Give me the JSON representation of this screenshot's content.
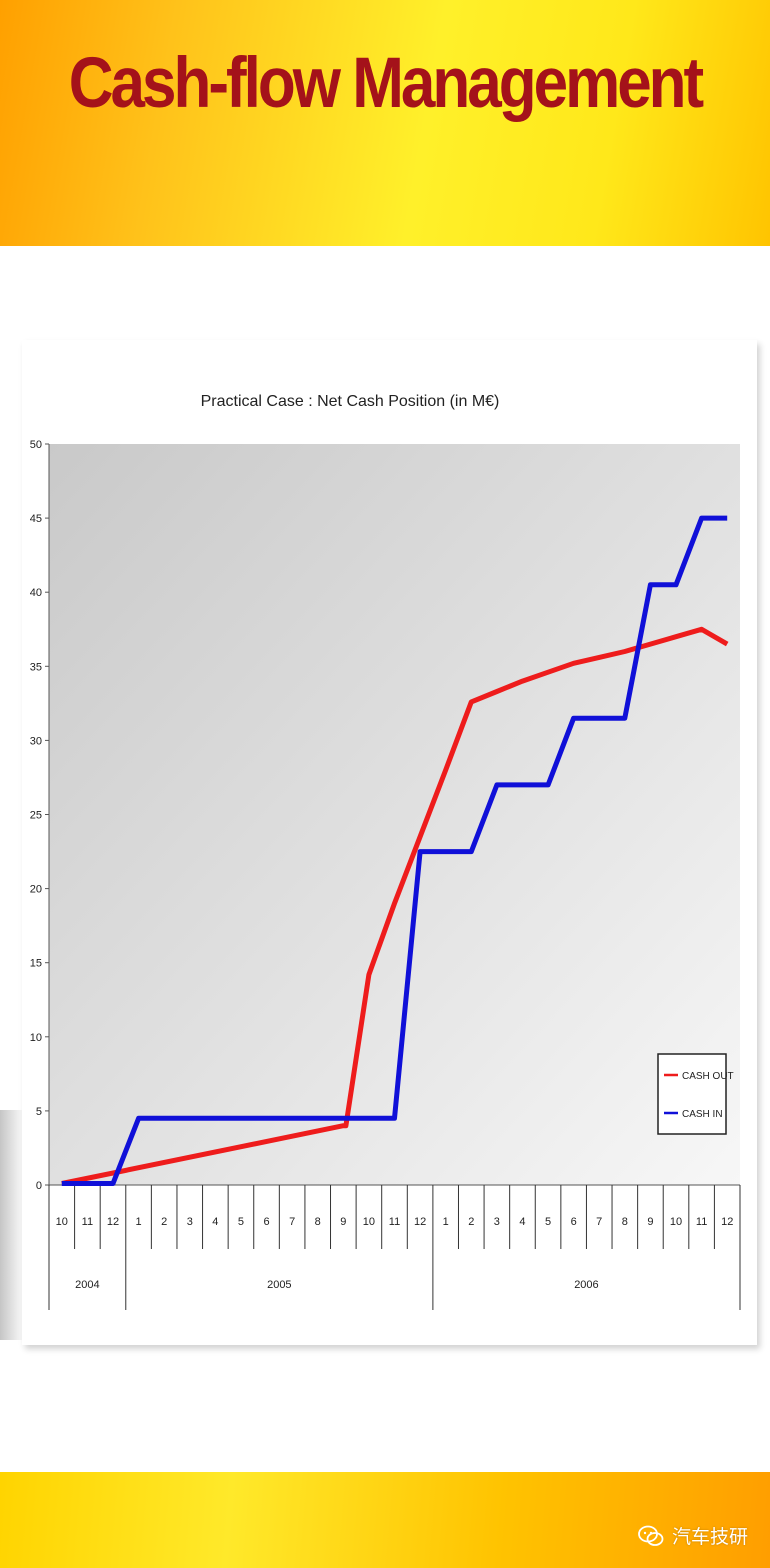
{
  "slide": {
    "title": "Cash-flow Management"
  },
  "watermark": {
    "text": "汽车技研",
    "icon": "wechat-icon"
  },
  "colors": {
    "cash_out": "#ee1c1c",
    "cash_in": "#1010d8",
    "title": "#a4121a",
    "banner_orange": "#ffa000",
    "banner_yellow": "#fff02a"
  },
  "chart_data": {
    "type": "line",
    "title": "Practical Case : Net Cash Position (in M€)",
    "xlabel": "",
    "ylabel": "",
    "ylim": [
      0,
      50
    ],
    "yticks": [
      "0",
      "5",
      "10",
      "15",
      "20",
      "25",
      "30",
      "35",
      "40",
      "45",
      "50"
    ],
    "categories": [
      "10",
      "11",
      "12",
      "1",
      "2",
      "3",
      "4",
      "5",
      "6",
      "7",
      "8",
      "9",
      "10",
      "11",
      "12",
      "1",
      "2",
      "3",
      "4",
      "5",
      "6",
      "7",
      "8",
      "9",
      "10",
      "11",
      "12"
    ],
    "year_groups": [
      {
        "label": "2004",
        "count": 3
      },
      {
        "label": "2005",
        "count": 12
      },
      {
        "label": "2006",
        "count": 12
      }
    ],
    "series": [
      {
        "name": "CASH OUT",
        "color": "#ee1c1c",
        "points": [
          [
            0,
            0.1
          ],
          [
            11,
            4.0
          ],
          [
            11.1,
            4.0
          ],
          [
            12,
            14.2
          ],
          [
            13,
            19.0
          ],
          [
            14,
            23.5
          ],
          [
            15,
            28.0
          ],
          [
            16,
            32.6
          ],
          [
            17,
            33.3
          ],
          [
            18,
            34.0
          ],
          [
            19,
            34.6
          ],
          [
            20,
            35.2
          ],
          [
            21,
            35.6
          ],
          [
            22,
            36.0
          ],
          [
            23,
            36.5
          ],
          [
            24,
            37.0
          ],
          [
            25,
            37.5
          ],
          [
            26,
            36.5
          ]
        ]
      },
      {
        "name": "CASH IN",
        "color": "#1010d8",
        "points": [
          [
            0,
            0.1
          ],
          [
            2,
            0.1
          ],
          [
            3,
            4.5
          ],
          [
            13,
            4.5
          ],
          [
            14,
            22.5
          ],
          [
            16,
            22.5
          ],
          [
            17,
            27.0
          ],
          [
            19,
            27.0
          ],
          [
            20,
            31.5
          ],
          [
            22,
            31.5
          ],
          [
            23,
            40.5
          ],
          [
            24,
            40.5
          ],
          [
            25,
            45.0
          ],
          [
            26,
            45.0
          ]
        ]
      }
    ],
    "legend": {
      "position": "bottom-right",
      "entries": [
        "CASH OUT",
        "CASH IN"
      ]
    },
    "grid": false
  }
}
